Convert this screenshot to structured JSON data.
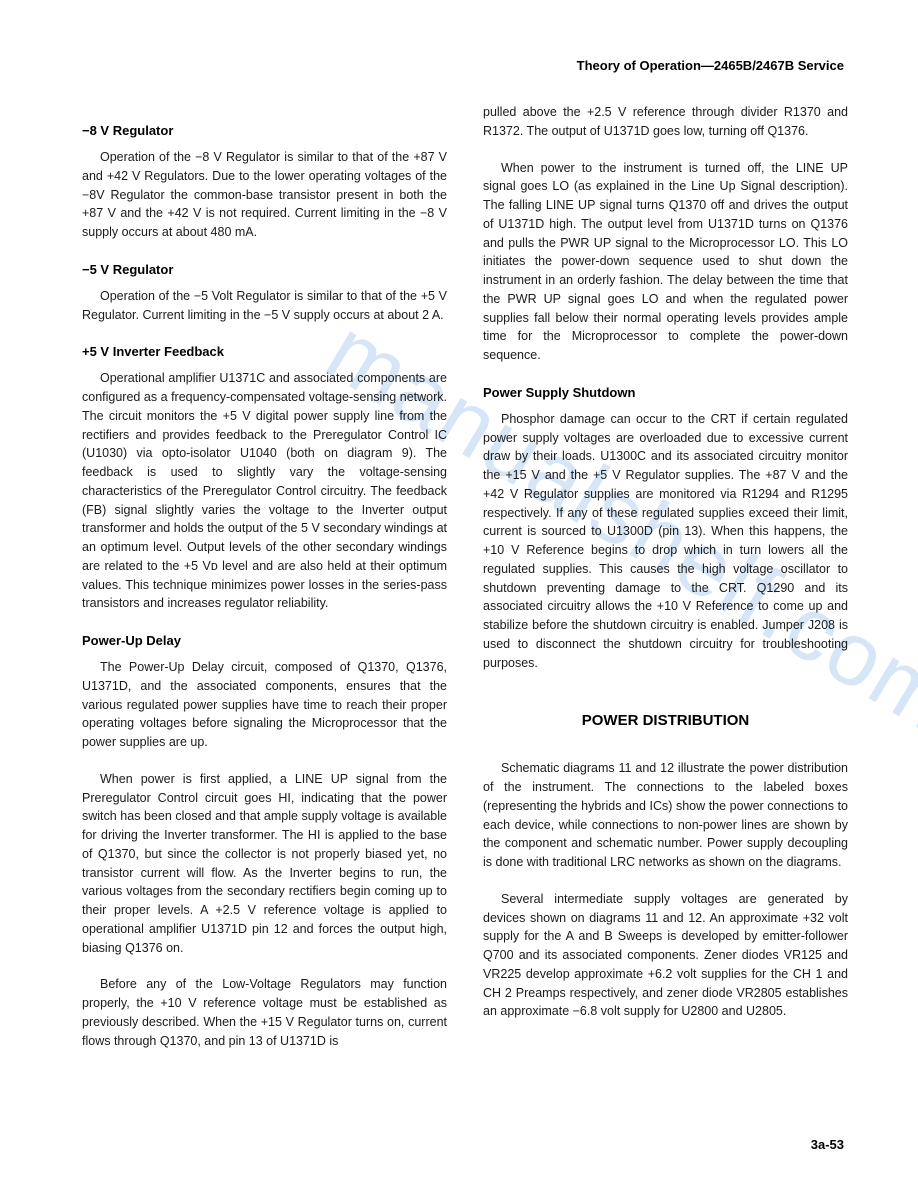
{
  "header": "Theory of Operation—2465B/2467B Service",
  "watermark": "manualshelf.com",
  "footer": "3a-53",
  "left": {
    "h1": "−8 V Regulator",
    "p1": "Operation of the −8 V Regulator is similar to that of the +87 V and +42 V Regulators. Due to the lower operating voltages of the −8V Regulator the common-base transistor present in both the +87 V and the +42 V is not required. Current limiting in the −8 V supply occurs at about 480 mA.",
    "h2": "−5 V Regulator",
    "p2": "Operation of the −5 Volt Regulator is similar to that of the +5 V Regulator. Current limiting in the −5 V supply occurs at about 2 A.",
    "h3": "+5 V Inverter Feedback",
    "p3": "Operational amplifier U1371C and associated components are configured as a frequency-compensated voltage-sensing network. The circuit monitors the +5 V digital power supply line from the rectifiers and provides feedback to the Preregulator Control IC (U1030) via opto-isolator U1040 (both on diagram 9). The feedback is used to slightly vary the voltage-sensing characteristics of the Preregulator Control circuitry. The feedback (FB) signal slightly varies the voltage to the Inverter output transformer and holds the output of the 5 V secondary windings at an optimum level. Output levels of the other secondary windings are related to the +5 Vᴅ level and are also held at their optimum values. This technique minimizes power losses in the series-pass transistors and increases regulator reliability.",
    "h4": "Power-Up Delay",
    "p4": "The Power-Up Delay circuit, composed of Q1370, Q1376, U1371D, and the associated components, ensures that the various regulated power supplies have time to reach their proper operating voltages before signaling the Microprocessor that the power supplies are up.",
    "p5": "When power is first applied, a LINE UP signal from the Preregulator Control circuit goes HI, indicating that the power switch has been closed and that ample supply voltage is available for driving the Inverter transformer. The HI is applied to the base of Q1370, but since the collector is not properly biased yet, no transistor current will flow. As the Inverter begins to run, the various voltages from the secondary rectifiers begin coming up to their proper levels. A +2.5 V reference voltage is applied to operational amplifier U1371D pin 12 and forces the output high, biasing Q1376 on.",
    "p6": "Before any of the Low-Voltage Regulators may function properly, the +10 V reference voltage must be established as previously described. When the +15 V Regulator turns on, current flows through Q1370, and pin 13 of U1371D is"
  },
  "right": {
    "p1": "pulled above the +2.5 V reference through divider R1370 and R1372. The output of U1371D goes low, turning off Q1376.",
    "p2": "When power to the instrument is turned off, the LINE UP signal goes LO (as explained in the Line Up Signal description). The falling LINE UP signal turns Q1370 off and drives the output of U1371D high. The output level from U1371D turns on Q1376 and pulls the PWR UP signal to the Microprocessor LO. This LO initiates the power-down sequence used to shut down the instrument in an orderly fashion. The delay between the time that the PWR UP signal goes LO and when the regulated power supplies fall below their normal operating levels provides ample time for the Microprocessor to complete the power-down sequence.",
    "h1": "Power Supply Shutdown",
    "p3": "Phosphor damage can occur to the CRT if certain regulated power supply voltages are overloaded due to excessive current draw by their loads. U1300C and its associated circuitry monitor the +15 V and the +5 V Regulator supplies. The +87 V and the +42 V Regulator supplies are monitored via R1294 and R1295 respectively. If any of these regulated supplies exceed their limit, current is sourced to U1300D (pin 13). When this happens, the +10 V Reference begins to drop which in turn lowers all the regulated supplies. This causes the high voltage oscillator to shutdown preventing damage to the CRT. Q1290 and its associated circuitry allows the +10 V Reference to come up and stabilize before the shutdown circuitry is enabled. Jumper J208 is used to disconnect the shutdown circuitry for troubleshooting purposes.",
    "h2": "POWER DISTRIBUTION",
    "p4": "Schematic diagrams 11 and 12 illustrate the power distribution of the instrument. The connections to the labeled boxes (representing the hybrids and ICs) show the power connections to each device, while connections to non-power lines are shown by the component and schematic number. Power supply decoupling is done with traditional LRC networks as shown on the diagrams.",
    "p5": "Several intermediate supply voltages are generated by devices shown on diagrams 11 and 12. An approximate +32 volt supply for the A and B Sweeps is developed by emitter-follower Q700 and its associated components. Zener diodes VR125 and VR225 develop approximate +6.2 volt supplies for the CH 1 and CH 2 Preamps respectively, and zener diode VR2805 establishes an approximate −6.8 volt supply for U2800 and U2805."
  }
}
